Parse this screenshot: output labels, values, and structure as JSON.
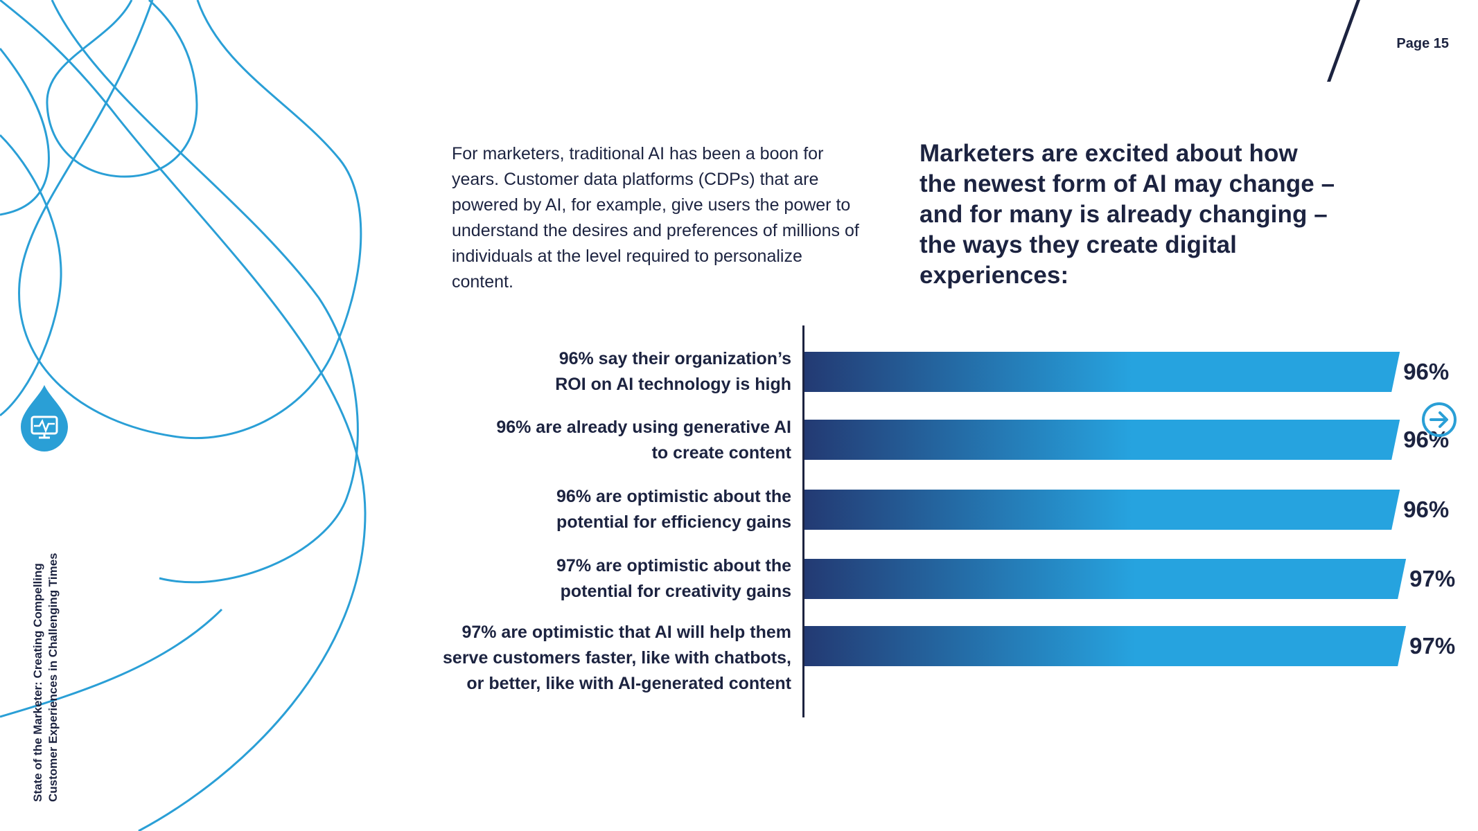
{
  "page": {
    "label": "Page 15",
    "side_title_line1": "State of the Marketer: Creating Compelling",
    "side_title_line2": "Customer Experiences in Challenging Times",
    "intro": "For marketers, traditional AI has been a boon for years. Customer data platforms (CDPs) that are powered by AI, for example, give users the power to understand the desires and preferences of millions of individuals at the level required to personalize content.",
    "headline": "Marketers are excited about how the newest form of AI may change – and for many is already changing – the ways they create digital experiences:",
    "icons": {
      "logo": "monitor-heartbeat-icon",
      "next": "arrow-right-circle-icon"
    }
  },
  "colors": {
    "navy": "#1c2340",
    "bar_start": "#233a73",
    "bar_end": "#26a3df",
    "decor": "#2a9fd6"
  },
  "chart_data": {
    "type": "bar",
    "orientation": "horizontal",
    "categories": [
      [
        "96% say their organization’s",
        "ROI on AI technology is high"
      ],
      [
        "96% are already using generative AI",
        "to create content"
      ],
      [
        "96% are optimistic about the",
        "potential for efficiency gains"
      ],
      [
        "97% are optimistic about the",
        "potential for creativity gains"
      ],
      [
        "97% are optimistic that AI will help them",
        "serve customers faster, like with chatbots,",
        "or better, like with AI-generated content"
      ]
    ],
    "values": [
      96,
      96,
      96,
      97,
      97
    ],
    "value_labels": [
      "96%",
      "96%",
      "96%",
      "97%",
      "97%"
    ],
    "xlim": [
      0,
      100
    ],
    "grid": false,
    "legend": "none"
  }
}
